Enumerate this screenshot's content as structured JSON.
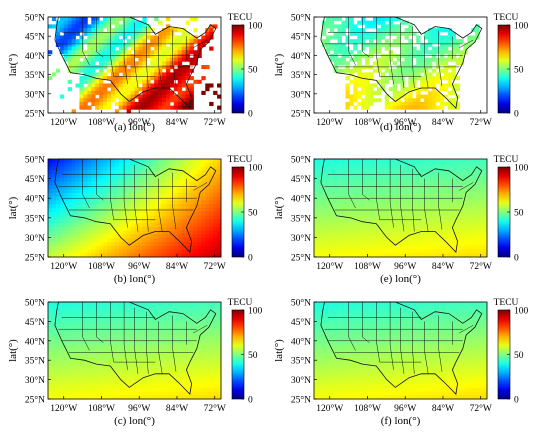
{
  "figure": {
    "lat_ticks": [
      "50°N",
      "45°N",
      "40°N",
      "35°N",
      "30°N",
      "25°N"
    ],
    "lon_ticks": [
      "120°W",
      "108°W",
      "96°W",
      "84°W",
      "72°W"
    ],
    "ylabel": "lat(°)",
    "colorbar": {
      "title": "TECU",
      "ticks": [
        "100",
        "50",
        "0"
      ],
      "range": [
        0,
        100
      ]
    },
    "panels": [
      {
        "id": "a",
        "caption": "(a) lon(°)",
        "show_ylabel": true,
        "style": "sparse-obs"
      },
      {
        "id": "d",
        "caption": "(d) lon(°)",
        "show_ylabel": true,
        "style": "sparse-residual"
      },
      {
        "id": "b",
        "caption": "(b) lon(°)",
        "show_ylabel": true,
        "style": "high-field"
      },
      {
        "id": "e",
        "caption": "(e) lon(°)",
        "show_ylabel": true,
        "style": "mid-field"
      },
      {
        "id": "c",
        "caption": "(c) lon(°)",
        "show_ylabel": true,
        "style": "mid-field"
      },
      {
        "id": "f",
        "caption": "(f) lon(°)",
        "show_ylabel": true,
        "style": "mid-field"
      }
    ]
  }
}
